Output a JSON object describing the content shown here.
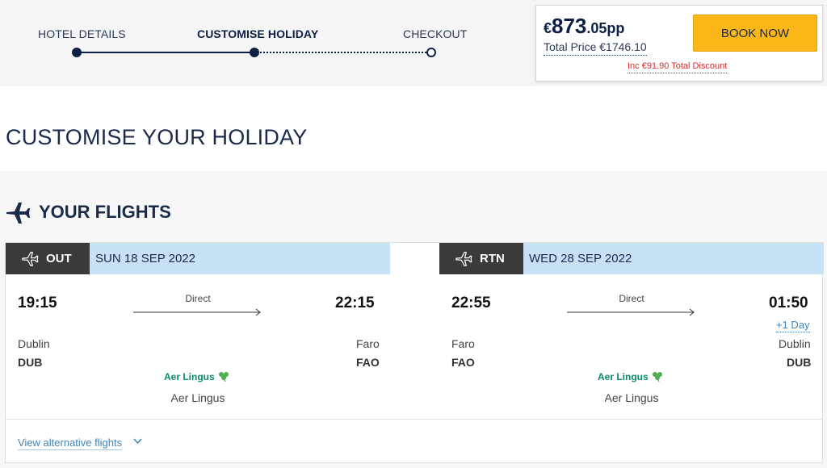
{
  "steps": [
    {
      "label": "HOTEL DETAILS",
      "state": "done"
    },
    {
      "label": "CUSTOMISE HOLIDAY",
      "state": "active"
    },
    {
      "label": "CHECKOUT",
      "state": "pending"
    }
  ],
  "price": {
    "currency": "€",
    "whole": "873",
    "fraction": ".05pp",
    "total_label": "Total Price €1746.10",
    "discount_label": "Inc €91.90 Total Discount",
    "book_label": "BOOK NOW"
  },
  "page_title": "CUSTOMISE YOUR HOLIDAY",
  "flights": {
    "section_title": "YOUR FLIGHTS",
    "outbound": {
      "tag": "OUT",
      "date": "SUN 18 SEP 2022",
      "depart_time": "19:15",
      "arrive_time": "22:15",
      "stops": "Direct",
      "from_city": "Dublin",
      "from_code": "DUB",
      "to_city": "Faro",
      "to_code": "FAO",
      "airline_logo": "Aer Lingus",
      "airline_name": "Aer Lingus"
    },
    "return": {
      "tag": "RTN",
      "date": "WED 28 SEP 2022",
      "depart_time": "22:55",
      "arrive_time": "01:50",
      "plus_day": "+1 Day",
      "stops": "Direct",
      "from_city": "Faro",
      "from_code": "FAO",
      "to_city": "Dublin",
      "to_code": "DUB",
      "airline_logo": "Aer Lingus",
      "airline_name": "Aer Lingus"
    },
    "alternative_link": "View alternative flights"
  },
  "colors": {
    "navy": "#0d1f45",
    "book_button": "#fbb617",
    "discount_red": "#d62c2c",
    "date_band": "#c6e2f4",
    "tag_dark": "#3a3a3a",
    "link_blue": "#3f83b6",
    "airline_green": "#0b8a6b"
  },
  "icons": {
    "section": "airplane-icon",
    "outbound": "plane-outline-icon",
    "return": "plane-outline-icon",
    "airline": "shamrock-icon",
    "expand": "chevron-down-icon"
  }
}
